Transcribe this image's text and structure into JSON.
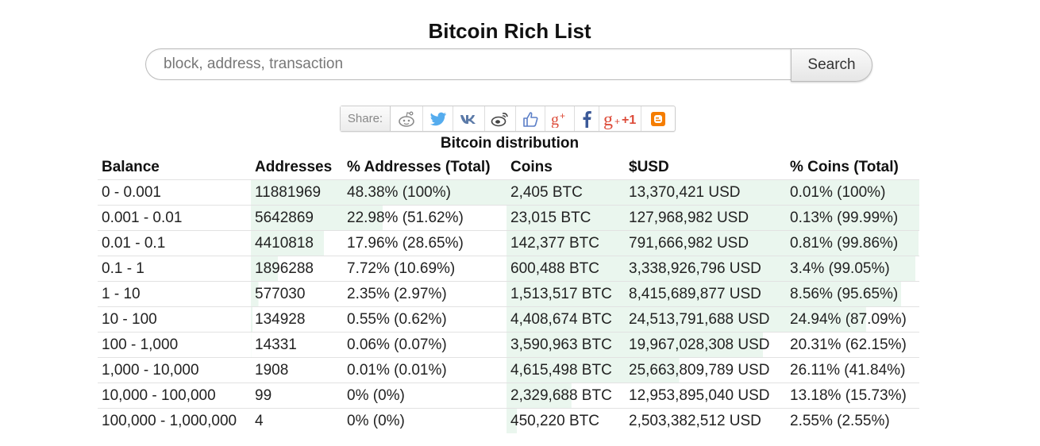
{
  "page": {
    "title": "Bitcoin Rich List"
  },
  "search": {
    "placeholder": "block, address, transaction",
    "button_label": "Search"
  },
  "share": {
    "label": "Share:",
    "buttons": [
      {
        "name": "reddit-icon",
        "color": "#8a8a8a"
      },
      {
        "name": "twitter-icon",
        "color": "#55acee"
      },
      {
        "name": "vk-icon",
        "color": "#5b7aa8"
      },
      {
        "name": "weibo-icon",
        "color": "#444444"
      },
      {
        "name": "like-icon",
        "color": "#5b7fc7"
      },
      {
        "name": "google-plus-icon",
        "color": "#dd4b39"
      },
      {
        "name": "facebook-icon",
        "color": "#3b5998"
      },
      {
        "name": "google-plus-one-icon",
        "color": "#dd4b39",
        "text": "+1"
      },
      {
        "name": "blogger-icon",
        "color": "#f57d00"
      }
    ]
  },
  "distribution": {
    "title": "Bitcoin distribution",
    "headers": [
      "Balance",
      "Addresses",
      "% Addresses (Total)",
      "Coins",
      "$USD",
      "% Coins (Total)"
    ],
    "rows": [
      {
        "balance": "0 - 0.001",
        "addresses": "11881969",
        "pct_addresses": "48.38% (100%)",
        "coins": "2,405 BTC",
        "usd": "13,370,421 USD",
        "pct_coins": "0.01% (100%)",
        "addr_fill": 100,
        "coin_fill": 100
      },
      {
        "balance": "0.001 - 0.01",
        "addresses": "5642869",
        "pct_addresses": "22.98% (51.62%)",
        "coins": "23,015 BTC",
        "usd": "127,968,982 USD",
        "pct_coins": "0.13% (99.99%)",
        "addr_fill": 51.62,
        "coin_fill": 99.99
      },
      {
        "balance": "0.01 - 0.1",
        "addresses": "4410818",
        "pct_addresses": "17.96% (28.65%)",
        "coins": "142,377 BTC",
        "usd": "791,666,982 USD",
        "pct_coins": "0.81% (99.86%)",
        "addr_fill": 28.65,
        "coin_fill": 99.86
      },
      {
        "balance": "0.1 - 1",
        "addresses": "1896288",
        "pct_addresses": "7.72% (10.69%)",
        "coins": "600,488 BTC",
        "usd": "3,338,926,796 USD",
        "pct_coins": "3.4% (99.05%)",
        "addr_fill": 10.69,
        "coin_fill": 99.05
      },
      {
        "balance": "1 - 10",
        "addresses": "577030",
        "pct_addresses": "2.35% (2.97%)",
        "coins": "1,513,517 BTC",
        "usd": "8,415,689,877 USD",
        "pct_coins": "8.56% (95.65%)",
        "addr_fill": 2.97,
        "coin_fill": 95.65
      },
      {
        "balance": "10 - 100",
        "addresses": "134928",
        "pct_addresses": "0.55% (0.62%)",
        "coins": "4,408,674 BTC",
        "usd": "24,513,791,688 USD",
        "pct_coins": "24.94% (87.09%)",
        "addr_fill": 0.62,
        "coin_fill": 87.09
      },
      {
        "balance": "100 - 1,000",
        "addresses": "14331",
        "pct_addresses": "0.06% (0.07%)",
        "coins": "3,590,963 BTC",
        "usd": "19,967,028,308 USD",
        "pct_coins": "20.31% (62.15%)",
        "addr_fill": 0.07,
        "coin_fill": 62.15
      },
      {
        "balance": "1,000 - 10,000",
        "addresses": "1908",
        "pct_addresses": "0.01% (0.01%)",
        "coins": "4,615,498 BTC",
        "usd": "25,663,809,789 USD",
        "pct_coins": "26.11% (41.84%)",
        "addr_fill": 0.01,
        "coin_fill": 41.84
      },
      {
        "balance": "10,000 - 100,000",
        "addresses": "99",
        "pct_addresses": "0% (0%)",
        "coins": "2,329,688 BTC",
        "usd": "12,953,895,040 USD",
        "pct_coins": "13.18% (15.73%)",
        "addr_fill": 0,
        "coin_fill": 15.73
      },
      {
        "balance": "100,000 - 1,000,000",
        "addresses": "4",
        "pct_addresses": "0% (0%)",
        "coins": "450,220 BTC",
        "usd": "2,503,382,512 USD",
        "pct_coins": "2.55% (2.55%)",
        "addr_fill": 0,
        "coin_fill": 2.55
      }
    ]
  }
}
